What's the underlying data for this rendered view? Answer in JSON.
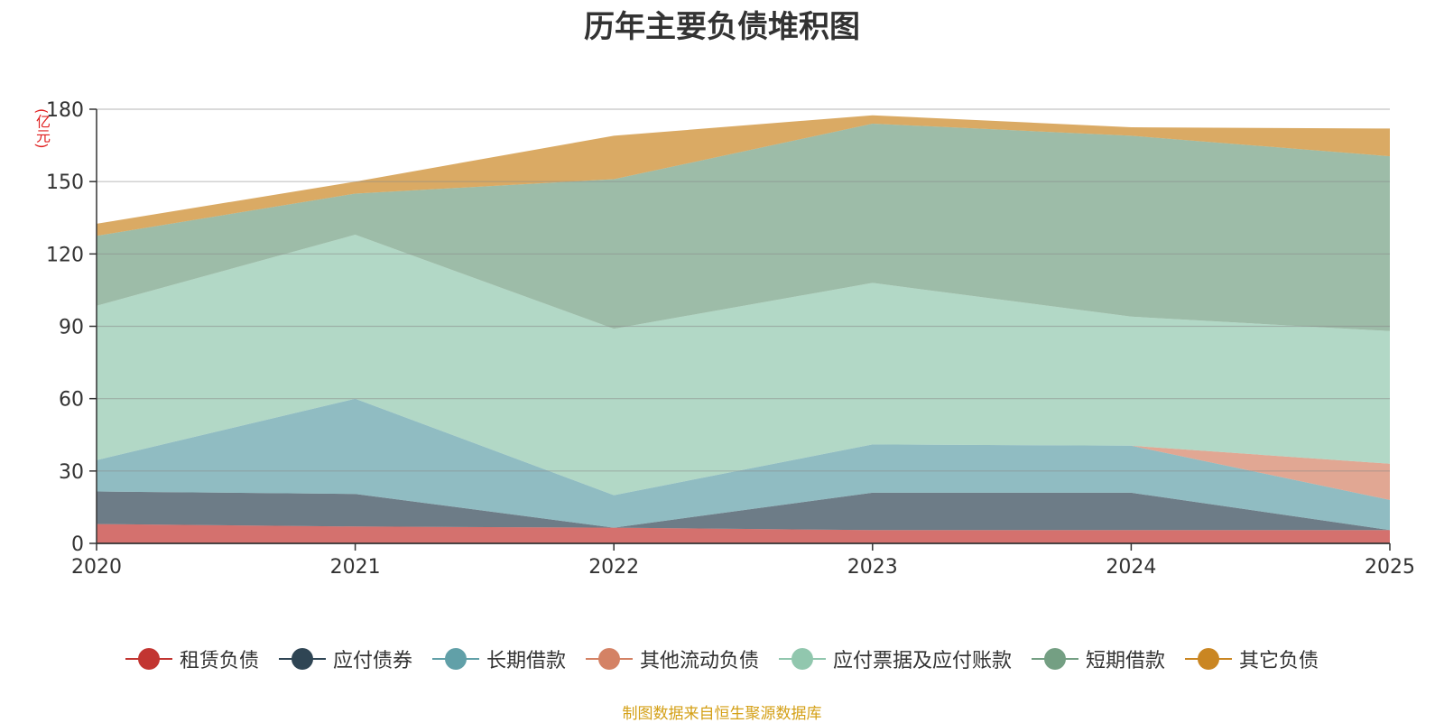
{
  "chart_data": {
    "type": "area",
    "stacked": true,
    "title": "历年主要负债堆积图",
    "unit_label": "(亿元)",
    "x": [
      "2020",
      "2021",
      "2022",
      "2023",
      "2024",
      "2025"
    ],
    "ylim": [
      0,
      180
    ],
    "yticks": [
      0,
      30,
      60,
      90,
      120,
      150,
      180
    ],
    "grid": true,
    "legend_position": "bottom",
    "series": [
      {
        "name": "租赁负债",
        "color": "#c23531",
        "values": [
          8,
          7,
          6.5,
          5.5,
          5.5,
          5.5
        ]
      },
      {
        "name": "应付债券",
        "color": "#2f4554",
        "values": [
          13.5,
          13.5,
          0,
          15.5,
          15.5,
          0
        ]
      },
      {
        "name": "长期借款",
        "color": "#61a0a8",
        "values": [
          13,
          39.5,
          13.5,
          20,
          19.5,
          12.5
        ]
      },
      {
        "name": "其他流动负债",
        "color": "#d48265",
        "values": [
          0,
          0,
          0,
          0,
          0,
          15
        ]
      },
      {
        "name": "应付票据及应付账款",
        "color": "#91c7ae",
        "values": [
          64,
          68,
          69,
          67,
          53.5,
          55
        ]
      },
      {
        "name": "短期借款",
        "color": "#749f83",
        "values": [
          29,
          17,
          62,
          66,
          75,
          72.5
        ]
      },
      {
        "name": "其它负债",
        "color": "#ca8622",
        "values": [
          5,
          5,
          18,
          3.5,
          3.5,
          11.5
        ]
      }
    ]
  },
  "source_note": "制图数据来自恒生聚源数据库"
}
